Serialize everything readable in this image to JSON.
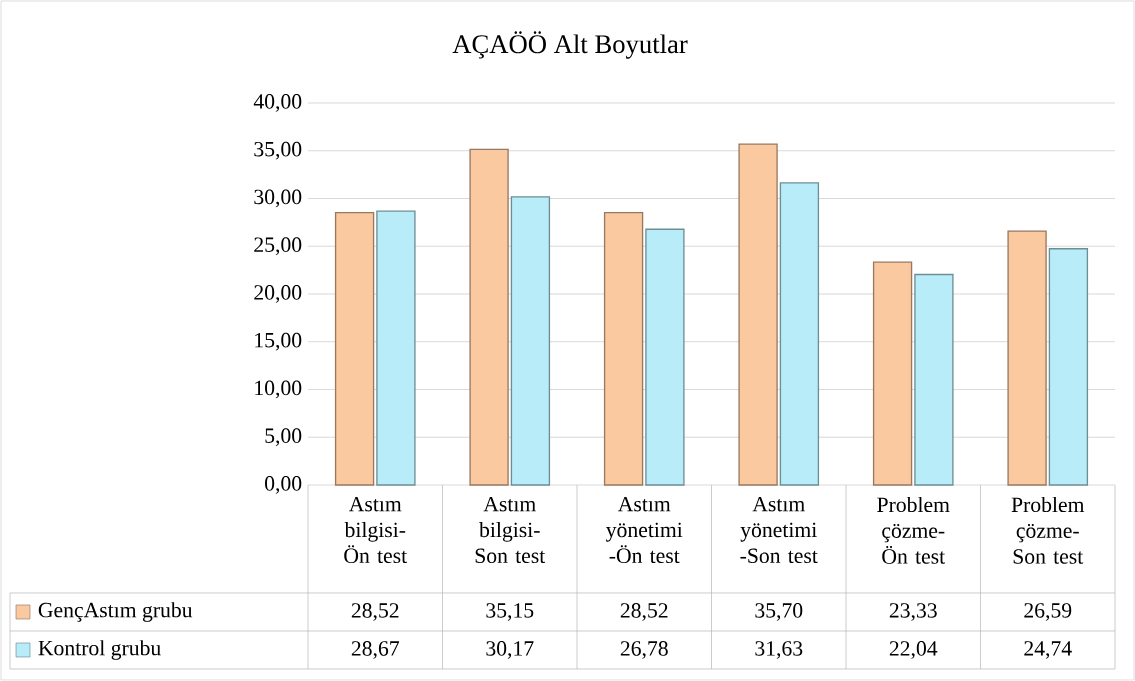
{
  "chart_data": {
    "type": "bar",
    "title": "AÇAÖÖ Alt Boyutlar",
    "categories": [
      "Astım bilgisi-Ön test",
      "Astım bilgisi-Son test",
      "Astım yönetimi -Ön test",
      "Astım yönetimi -Son test",
      "Problem çözme-Ön test",
      "Problem çözme-Son test"
    ],
    "series": [
      {
        "name": "GençAstım grubu",
        "color": "#fbc9a0",
        "values": [
          28.52,
          35.15,
          28.52,
          35.7,
          23.33,
          26.59
        ],
        "value_labels": [
          "28,52",
          "35,15",
          "28,52",
          "35,70",
          "23,33",
          "26,59"
        ]
      },
      {
        "name": "Kontrol grubu",
        "color": "#b7ecf8",
        "values": [
          28.67,
          30.17,
          26.78,
          31.63,
          22.04,
          24.74
        ],
        "value_labels": [
          "28,67",
          "30,17",
          "26,78",
          "31,63",
          "22,04",
          "24,74"
        ]
      }
    ],
    "ylim": [
      0,
      40
    ],
    "yticks": [
      {
        "value": 0,
        "label": "0,00"
      },
      {
        "value": 5,
        "label": "5,00"
      },
      {
        "value": 10,
        "label": "10,00"
      },
      {
        "value": 15,
        "label": "15,00"
      },
      {
        "value": 20,
        "label": "20,00"
      },
      {
        "value": 25,
        "label": "25,00"
      },
      {
        "value": 30,
        "label": "30,00"
      },
      {
        "value": 35,
        "label": "35,00"
      },
      {
        "value": 40,
        "label": "40,00"
      }
    ],
    "grid": "y",
    "legend": "bottom"
  }
}
